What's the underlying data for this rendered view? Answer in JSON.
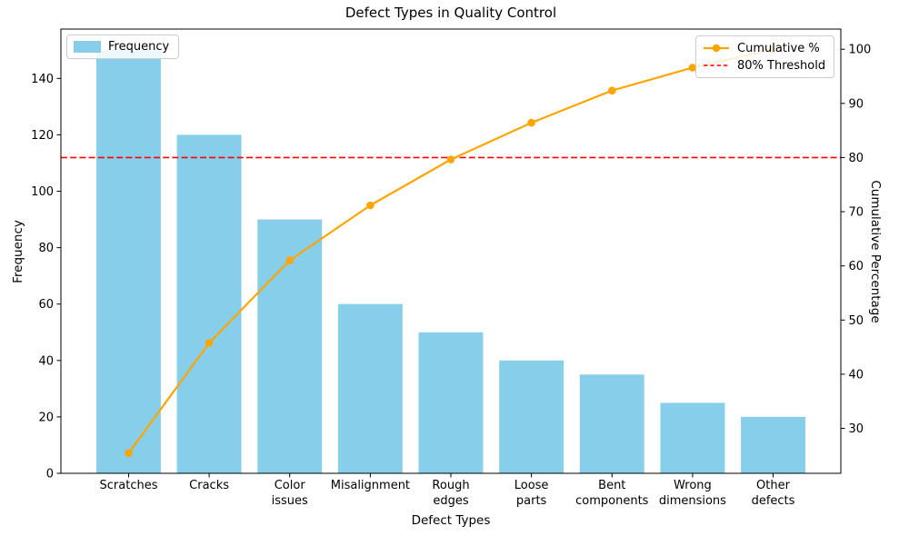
{
  "chart_data": {
    "type": "pareto (bar + line)",
    "title": "Defect Types in Quality Control",
    "xlabel": "Defect Types",
    "grid": false,
    "categories": [
      "Scratches",
      "Cracks",
      "Color\nissues",
      "Misalignment",
      "Rough\nedges",
      "Loose\nparts",
      "Bent\ncomponents",
      "Wrong\ndimensions",
      "Other\ndefects"
    ],
    "series": [
      {
        "name": "Frequency",
        "type": "bar",
        "axis": "left",
        "color": "#87CEEB",
        "values": [
          150,
          120,
          90,
          60,
          50,
          40,
          35,
          25,
          20
        ]
      },
      {
        "name": "Cumulative %",
        "type": "line",
        "axis": "right",
        "color": "#FFA500",
        "marker": "circle",
        "values": [
          25.42,
          45.76,
          61.02,
          71.19,
          79.66,
          86.44,
          92.37,
          96.61,
          100.0
        ]
      }
    ],
    "threshold": {
      "label": "80% Threshold",
      "value": 80,
      "color": "#FF0000",
      "style": "dashed",
      "axis": "right"
    },
    "left_axis": {
      "label": "Frequency",
      "ticks": [
        0,
        20,
        40,
        60,
        80,
        100,
        120,
        140
      ],
      "range": [
        0,
        157.5
      ]
    },
    "right_axis": {
      "label": "Cumulative Percentage",
      "ticks": [
        30,
        40,
        50,
        60,
        70,
        80,
        90,
        100
      ],
      "range": [
        21.69,
        103.73
      ]
    },
    "legend_left": {
      "items": [
        {
          "label": "Frequency",
          "swatch": "bar-patch"
        }
      ]
    },
    "legend_right": {
      "items": [
        {
          "label": "Cumulative %",
          "swatch": "line-marker"
        },
        {
          "label": "80% Threshold",
          "swatch": "dashed-line"
        }
      ]
    }
  },
  "colors": {
    "background": "#FFFFFF",
    "bar": "#87CEEB",
    "line": "#FFA500",
    "threshold": "#FF0000",
    "axis": "#000000",
    "legend_border": "#CCCCCC"
  }
}
